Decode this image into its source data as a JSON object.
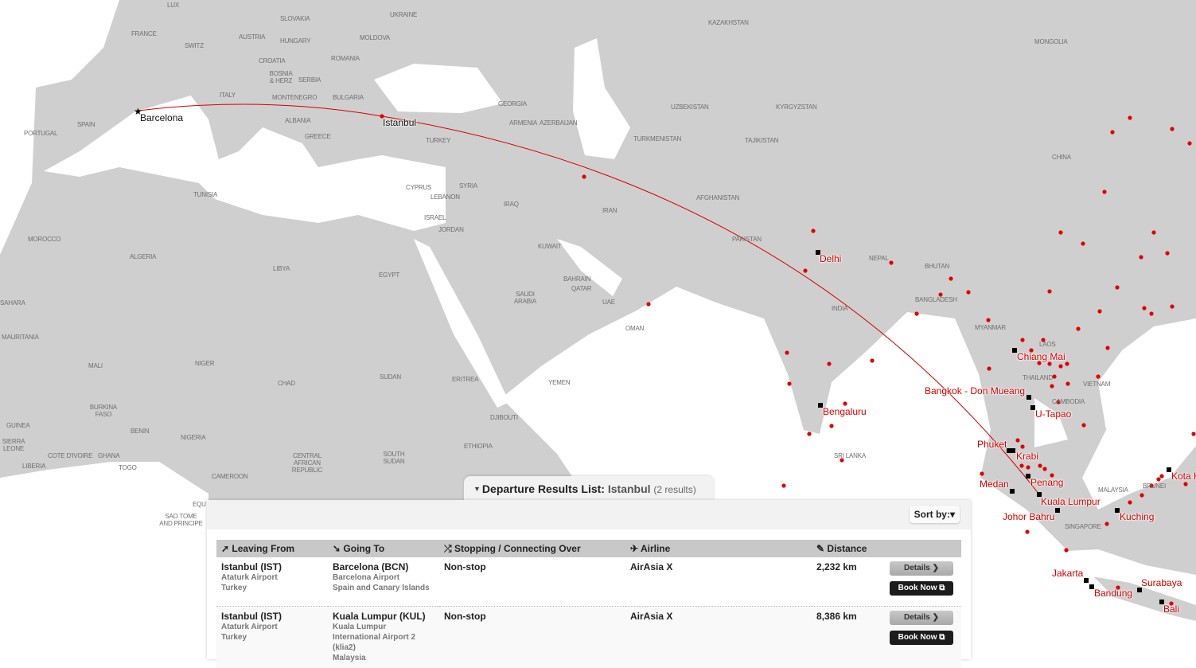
{
  "map": {
    "colors": {
      "land": "#cfcfcf",
      "sea": "#ffffff",
      "route": "#d40000",
      "airport_dot": "#e00000",
      "hub_square": "#000000"
    },
    "countries": [
      "LUX",
      "SLOVAKIA",
      "UKRAINE",
      "FRANCE",
      "AUSTRIA",
      "HUNGARY",
      "MOLDOVA",
      "SWITZ",
      "CROATIA",
      "ROMANIA",
      "BOSNIA & HERZ",
      "SERBIA",
      "ITALY",
      "MONTENEGRO",
      "BULGARIA",
      "ALBANIA",
      "PORTUGAL",
      "SPAIN",
      "GREECE",
      "TURKEY",
      "GEORGIA",
      "ARMENIA",
      "AZERBAIJAN",
      "KAZAKHSTAN",
      "MONGOLIA",
      "UZBEKISTAN",
      "KYRGYZSTAN",
      "TURKMENISTAN",
      "TAJIKISTAN",
      "CHINA",
      "TUNISIA",
      "CYPRUS",
      "SYRIA",
      "LEBANON",
      "ISRAEL",
      "IRAQ",
      "IRAN",
      "JORDAN",
      "AFGHANISTAN",
      "PAKISTAN",
      "MOROCCO",
      "ALGERIA",
      "LIBYA",
      "EGYPT",
      "KUWAIT",
      "NEPAL",
      "BHUTAN",
      "BAHRAIN",
      "QATAR",
      "SAUDI ARABIA",
      "UAE",
      "INDIA",
      "BANGLADESH",
      "OMAN",
      "MYANMAR",
      "LAOS",
      "THAILAND",
      "VIETNAM",
      "MAURITANIA",
      "MALI",
      "NIGER",
      "CHAD",
      "SUDAN",
      "ERITREA",
      "YEMEN",
      "CAMBODIA",
      "BURKINA FASO",
      "DJIBOUTI",
      "GUINEA",
      "BENIN",
      "NIGERIA",
      "ETHIOPIA",
      "SRI LANKA",
      "SIERRA LEONE",
      "COTE D'IVOIRE",
      "GHANA",
      "TOGO",
      "LIBERIA",
      "CENTRAL AFRICAN REPUBLIC",
      "SOUTH SUDAN",
      "CAMEROON",
      "SAO TOME AND PRINCIPE",
      "MALAYSIA",
      "BRUNEI",
      "SINGAPORE",
      "SAHARA",
      "EQU"
    ],
    "cities": [
      "Barcelona",
      "Istanbul",
      "Delhi",
      "Bengaluru",
      "Chiang Mai",
      "Bangkok - Don Mueang",
      "U-Tapao",
      "Phuket",
      "Krabi",
      "Penang",
      "Medan",
      "Kuala Lumpur",
      "Johor Bahru",
      "Kuching",
      "Kota K",
      "Jakarta",
      "Bandung",
      "Surabaya",
      "Bali"
    ]
  },
  "results": {
    "collapse_icon": "caret-down-icon",
    "title": "Departure Results List:",
    "location": "Istanbul",
    "count": "(2 results)",
    "sort_label": "Sort by:",
    "columns": [
      {
        "label": "Leaving From",
        "icon": "arrow-up-right-icon"
      },
      {
        "label": "Going To",
        "icon": "arrow-down-right-icon"
      },
      {
        "label": "Stopping / Connecting Over",
        "icon": "shuffle-icon"
      },
      {
        "label": "Airline",
        "icon": "plane-icon"
      },
      {
        "label": "Distance",
        "icon": "pencil-icon"
      }
    ],
    "rows": [
      {
        "from": "Istanbul (IST)",
        "from_airport": "Ataturk Airport",
        "from_country": "Turkey",
        "to": "Barcelona (BCN)",
        "to_airport": "Barcelona Airport",
        "to_country": "Spain and Canary Islands",
        "stops": "Non-stop",
        "airline": "AirAsia X",
        "distance": "2,232 km",
        "details": "Details ❯",
        "book": "Book Now ⧉"
      },
      {
        "from": "Istanbul (IST)",
        "from_airport": "Ataturk Airport",
        "from_country": "Turkey",
        "to": "Kuala Lumpur (KUL)",
        "to_airport": "Kuala Lumpur International Airport 2 (klia2)",
        "to_country": "Malaysia",
        "stops": "Non-stop",
        "airline": "AirAsia X",
        "distance": "8,386 km",
        "details": "Details ❯",
        "book": "Book Now ⧉"
      }
    ]
  }
}
